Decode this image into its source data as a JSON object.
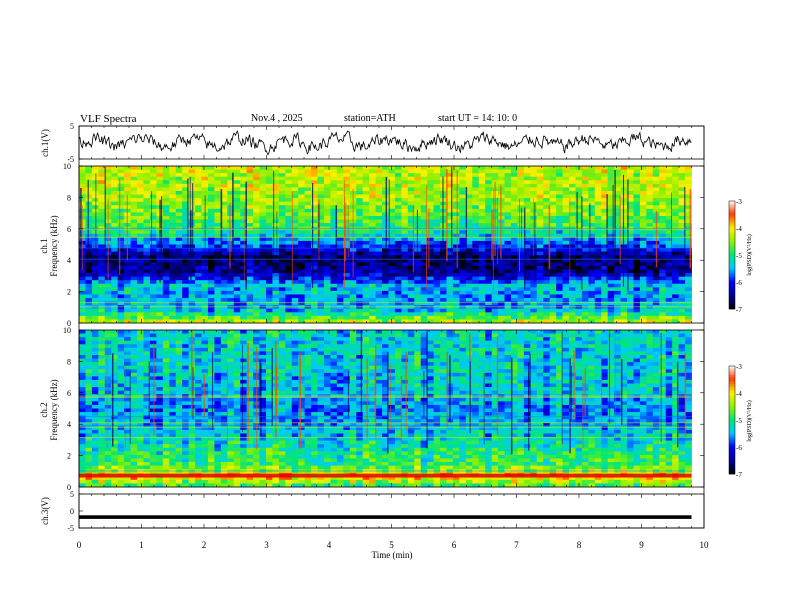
{
  "header": {
    "title": "VLF  Spectra",
    "date": "Nov.4  , 2025",
    "station": "station=ATH",
    "start": "start  UT  =   14: 10: 0"
  },
  "chart_data": [
    {
      "type": "line",
      "name": "ch1-waveform",
      "ylabel": "ch.1(V)",
      "ylim": [
        -5,
        5
      ],
      "yticks": [
        "5",
        "-5"
      ],
      "xlim": [
        0,
        10
      ],
      "series": [
        {
          "name": "ch.1",
          "description": "noisy broadband signal, amplitude about +/-2.5 V, 0 to 9.8 min"
        }
      ]
    },
    {
      "type": "heatmap",
      "name": "ch1-spectrogram",
      "ylabel": "Frequency  (kHz)",
      "ylabel2": "ch.1",
      "ylim": [
        0,
        10
      ],
      "yticks": [
        "0",
        "2",
        "4",
        "6",
        "8",
        "10"
      ],
      "xlim": [
        0,
        10
      ],
      "data_end_min": 9.8,
      "bands_khz_to_log_psd": [
        [
          0.0,
          -4.2
        ],
        [
          0.8,
          -5.4
        ],
        [
          1.6,
          -5.6
        ],
        [
          2.4,
          -5.4
        ],
        [
          3.2,
          -6.5
        ],
        [
          4.2,
          -6.7
        ],
        [
          5.0,
          -5.8
        ],
        [
          6.0,
          -4.9
        ],
        [
          8.0,
          -4.4
        ],
        [
          10.0,
          -4.3
        ]
      ],
      "colorbar": {
        "label": "log(PSD)(V²/Hz)",
        "range": [
          -7,
          -3
        ],
        "ticks": [
          "-3",
          "-4",
          "-5",
          "-6",
          "-7"
        ]
      }
    },
    {
      "type": "heatmap",
      "name": "ch2-spectrogram",
      "ylabel": "Frequency  (kHz)",
      "ylabel2": "ch.2",
      "ylim": [
        0,
        10
      ],
      "yticks": [
        "0",
        "2",
        "4",
        "6",
        "8",
        "10"
      ],
      "xlim": [
        0,
        10
      ],
      "data_end_min": 9.8,
      "bands_khz_to_log_psd": [
        [
          0.0,
          -5.0
        ],
        [
          0.7,
          -3.8
        ],
        [
          1.0,
          -4.4
        ],
        [
          1.5,
          -4.9
        ],
        [
          2.2,
          -5.0
        ],
        [
          3.0,
          -5.3
        ],
        [
          4.0,
          -5.5
        ],
        [
          5.0,
          -5.6
        ],
        [
          6.0,
          -5.4
        ],
        [
          8.0,
          -5.3
        ],
        [
          10.0,
          -5.3
        ]
      ],
      "colorbar": {
        "label": "log(PSD)(V²/Hz)",
        "range": [
          -7,
          -3
        ],
        "ticks": [
          "-3",
          "-4",
          "-5",
          "-6",
          "-7"
        ]
      }
    },
    {
      "type": "line",
      "name": "ch3-waveform",
      "ylabel": "ch.3(V)",
      "ylim": [
        -5,
        5
      ],
      "yticks": [
        "5",
        "0",
        "-5"
      ],
      "xlabel": "Time  (min)",
      "xlim": [
        0,
        10
      ],
      "xticks": [
        "0",
        "1",
        "2",
        "3",
        "4",
        "5",
        "6",
        "7",
        "8",
        "9",
        "10"
      ],
      "series": [
        {
          "name": "ch.3",
          "constant_value": -1.8
        }
      ]
    }
  ]
}
